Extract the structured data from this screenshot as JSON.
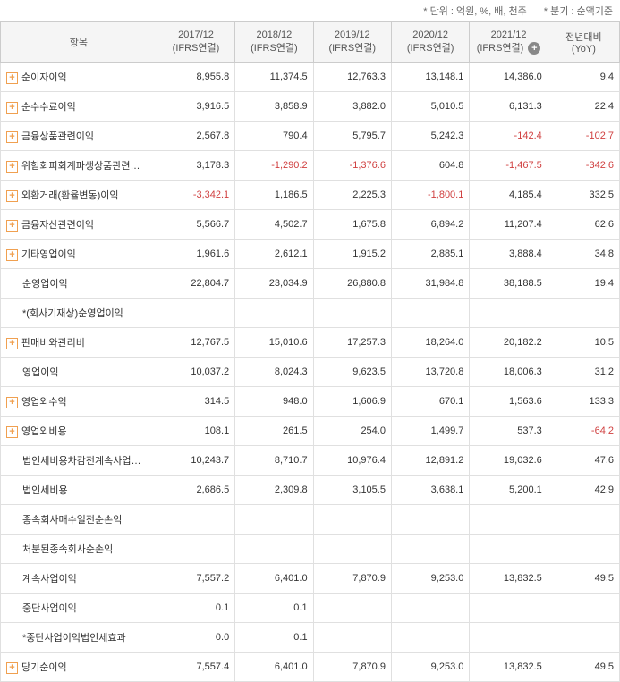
{
  "header_note": {
    "unit": "* 단위 : 억원, %, 배, 천주",
    "basis": "* 분기 : 순액기준"
  },
  "columns": {
    "item": "항목",
    "years": [
      {
        "period": "2017/12",
        "basis": "(IFRS연결)"
      },
      {
        "period": "2018/12",
        "basis": "(IFRS연결)"
      },
      {
        "period": "2019/12",
        "basis": "(IFRS연결)"
      },
      {
        "period": "2020/12",
        "basis": "(IFRS연결)"
      },
      {
        "period": "2021/12",
        "basis": "(IFRS연결)"
      }
    ],
    "yoy": {
      "line1": "전년대비",
      "line2": "(YoY)"
    }
  },
  "rows": [
    {
      "expandable": true,
      "indent": 0,
      "label": "순이자이익",
      "values": [
        "8,955.8",
        "11,374.5",
        "12,763.3",
        "13,148.1",
        "14,386.0",
        "9.4"
      ],
      "neg": [
        false,
        false,
        false,
        false,
        false,
        false
      ]
    },
    {
      "expandable": true,
      "indent": 0,
      "label": "순수수료이익",
      "values": [
        "3,916.5",
        "3,858.9",
        "3,882.0",
        "5,010.5",
        "6,131.3",
        "22.4"
      ],
      "neg": [
        false,
        false,
        false,
        false,
        false,
        false
      ]
    },
    {
      "expandable": true,
      "indent": 0,
      "label": "금융상품관련이익",
      "values": [
        "2,567.8",
        "790.4",
        "5,795.7",
        "5,242.3",
        "-142.4",
        "-102.7"
      ],
      "neg": [
        false,
        false,
        false,
        false,
        true,
        true
      ]
    },
    {
      "expandable": true,
      "indent": 0,
      "label": "위험회피회계파생상품관련…",
      "values": [
        "3,178.3",
        "-1,290.2",
        "-1,376.6",
        "604.8",
        "-1,467.5",
        "-342.6"
      ],
      "neg": [
        false,
        true,
        true,
        false,
        true,
        true
      ]
    },
    {
      "expandable": true,
      "indent": 0,
      "label": "외환거래(환율변동)이익",
      "values": [
        "-3,342.1",
        "1,186.5",
        "2,225.3",
        "-1,800.1",
        "4,185.4",
        "332.5"
      ],
      "neg": [
        true,
        false,
        false,
        true,
        false,
        false
      ]
    },
    {
      "expandable": true,
      "indent": 0,
      "label": "금융자산관련이익",
      "values": [
        "5,566.7",
        "4,502.7",
        "1,675.8",
        "6,894.2",
        "11,207.4",
        "62.6"
      ],
      "neg": [
        false,
        false,
        false,
        false,
        false,
        false
      ]
    },
    {
      "expandable": true,
      "indent": 0,
      "label": "기타영업이익",
      "values": [
        "1,961.6",
        "2,612.1",
        "1,915.2",
        "2,885.1",
        "3,888.4",
        "34.8"
      ],
      "neg": [
        false,
        false,
        false,
        false,
        false,
        false
      ]
    },
    {
      "expandable": false,
      "indent": 1,
      "label": "순영업이익",
      "values": [
        "22,804.7",
        "23,034.9",
        "26,880.8",
        "31,984.8",
        "38,188.5",
        "19.4"
      ],
      "neg": [
        false,
        false,
        false,
        false,
        false,
        false
      ]
    },
    {
      "expandable": false,
      "indent": 1,
      "label": "*(회사기재상)순영업이익",
      "values": [
        "",
        "",
        "",
        "",
        "",
        ""
      ],
      "neg": [
        false,
        false,
        false,
        false,
        false,
        false
      ]
    },
    {
      "expandable": true,
      "indent": 0,
      "label": "판매비와관리비",
      "values": [
        "12,767.5",
        "15,010.6",
        "17,257.3",
        "18,264.0",
        "20,182.2",
        "10.5"
      ],
      "neg": [
        false,
        false,
        false,
        false,
        false,
        false
      ]
    },
    {
      "expandable": false,
      "indent": 1,
      "label": "영업이익",
      "values": [
        "10,037.2",
        "8,024.3",
        "9,623.5",
        "13,720.8",
        "18,006.3",
        "31.2"
      ],
      "neg": [
        false,
        false,
        false,
        false,
        false,
        false
      ]
    },
    {
      "expandable": true,
      "indent": 0,
      "label": "영업외수익",
      "values": [
        "314.5",
        "948.0",
        "1,606.9",
        "670.1",
        "1,563.6",
        "133.3"
      ],
      "neg": [
        false,
        false,
        false,
        false,
        false,
        false
      ]
    },
    {
      "expandable": true,
      "indent": 0,
      "label": "영업외비용",
      "values": [
        "108.1",
        "261.5",
        "254.0",
        "1,499.7",
        "537.3",
        "-64.2"
      ],
      "neg": [
        false,
        false,
        false,
        false,
        false,
        true
      ]
    },
    {
      "expandable": false,
      "indent": 1,
      "label": "법인세비용차감전계속사업…",
      "values": [
        "10,243.7",
        "8,710.7",
        "10,976.4",
        "12,891.2",
        "19,032.6",
        "47.6"
      ],
      "neg": [
        false,
        false,
        false,
        false,
        false,
        false
      ]
    },
    {
      "expandable": false,
      "indent": 1,
      "label": "법인세비용",
      "values": [
        "2,686.5",
        "2,309.8",
        "3,105.5",
        "3,638.1",
        "5,200.1",
        "42.9"
      ],
      "neg": [
        false,
        false,
        false,
        false,
        false,
        false
      ]
    },
    {
      "expandable": false,
      "indent": 1,
      "label": "종속회사매수일전순손익",
      "values": [
        "",
        "",
        "",
        "",
        "",
        ""
      ],
      "neg": [
        false,
        false,
        false,
        false,
        false,
        false
      ]
    },
    {
      "expandable": false,
      "indent": 1,
      "label": "처분된종속회사순손익",
      "values": [
        "",
        "",
        "",
        "",
        "",
        ""
      ],
      "neg": [
        false,
        false,
        false,
        false,
        false,
        false
      ]
    },
    {
      "expandable": false,
      "indent": 1,
      "label": "계속사업이익",
      "values": [
        "7,557.2",
        "6,401.0",
        "7,870.9",
        "9,253.0",
        "13,832.5",
        "49.5"
      ],
      "neg": [
        false,
        false,
        false,
        false,
        false,
        false
      ]
    },
    {
      "expandable": false,
      "indent": 1,
      "label": "중단사업이익",
      "values": [
        "0.1",
        "0.1",
        "",
        "",
        "",
        ""
      ],
      "neg": [
        false,
        false,
        false,
        false,
        false,
        false
      ]
    },
    {
      "expandable": false,
      "indent": 1,
      "label": "*중단사업이익법인세효과",
      "values": [
        "0.0",
        "0.1",
        "",
        "",
        "",
        ""
      ],
      "neg": [
        false,
        false,
        false,
        false,
        false,
        false
      ]
    },
    {
      "expandable": true,
      "indent": 0,
      "label": "당기순이익",
      "values": [
        "7,557.4",
        "6,401.0",
        "7,870.9",
        "9,253.0",
        "13,832.5",
        "49.5"
      ],
      "neg": [
        false,
        false,
        false,
        false,
        false,
        false
      ]
    }
  ]
}
